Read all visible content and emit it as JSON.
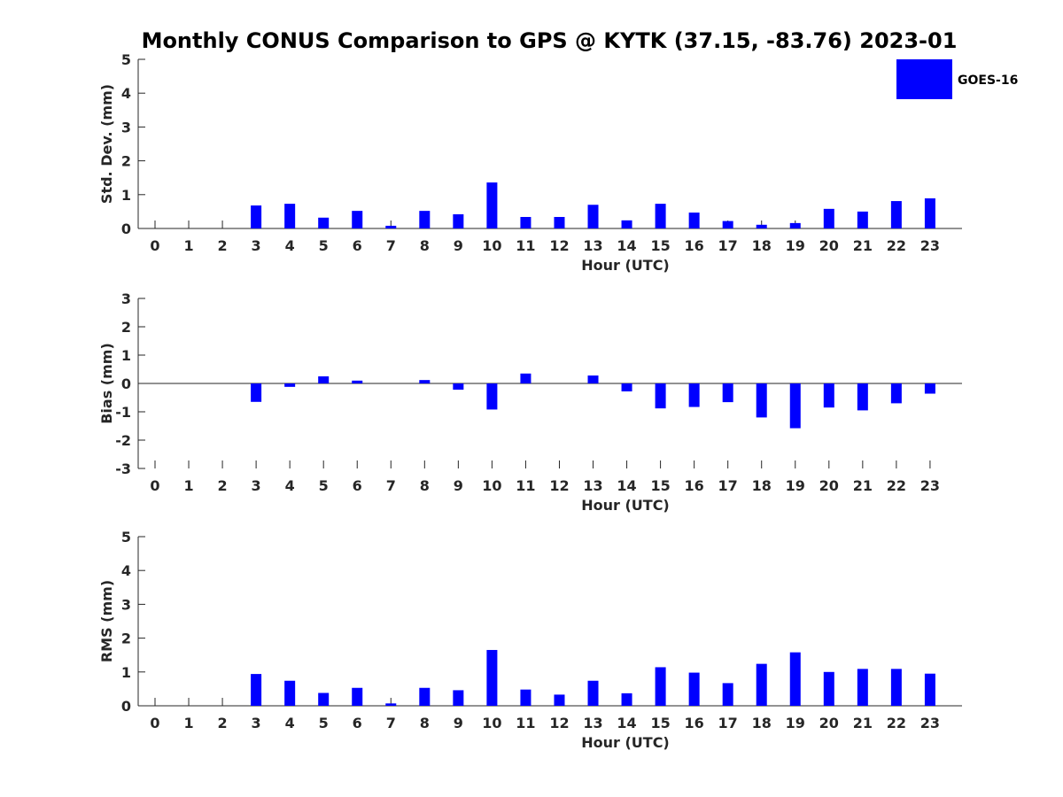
{
  "title": "Monthly CONUS Comparison to GPS @ KYTK (37.15, -83.76) 2023-01",
  "legend": {
    "label": "GOES-16",
    "color": "#0000ff"
  },
  "chart_data": [
    {
      "type": "bar",
      "ylabel": "Std. Dev. (mm)",
      "xlabel": "Hour (UTC)",
      "ylim": [
        0,
        5
      ],
      "yticks": [
        0,
        1,
        2,
        3,
        4,
        5
      ],
      "categories": [
        "0",
        "1",
        "2",
        "3",
        "4",
        "5",
        "6",
        "7",
        "8",
        "9",
        "10",
        "11",
        "12",
        "13",
        "14",
        "15",
        "16",
        "17",
        "18",
        "19",
        "20",
        "21",
        "22",
        "23"
      ],
      "series": [
        {
          "name": "GOES-16",
          "values": [
            0,
            0,
            0,
            0.68,
            0.73,
            0.32,
            0.52,
            0.08,
            0.52,
            0.42,
            1.36,
            0.34,
            0.34,
            0.7,
            0.24,
            0.73,
            0.47,
            0.22,
            0.11,
            0.16,
            0.58,
            0.5,
            0.81,
            0.89
          ]
        }
      ]
    },
    {
      "type": "bar",
      "ylabel": "Bias (mm)",
      "xlabel": "Hour (UTC)",
      "ylim": [
        -3,
        3
      ],
      "yticks": [
        -3,
        -2,
        -1,
        0,
        1,
        2,
        3
      ],
      "categories": [
        "0",
        "1",
        "2",
        "3",
        "4",
        "5",
        "6",
        "7",
        "8",
        "9",
        "10",
        "11",
        "12",
        "13",
        "14",
        "15",
        "16",
        "17",
        "18",
        "19",
        "20",
        "21",
        "22",
        "23"
      ],
      "series": [
        {
          "name": "GOES-16",
          "values": [
            0,
            0,
            0,
            -0.65,
            -0.12,
            0.25,
            0.1,
            0,
            0.12,
            -0.22,
            -0.92,
            0.35,
            0,
            0.28,
            -0.28,
            -0.88,
            -0.83,
            -0.66,
            -1.2,
            -1.58,
            -0.85,
            -0.95,
            -0.7,
            -0.36
          ]
        }
      ]
    },
    {
      "type": "bar",
      "ylabel": "RMS (mm)",
      "xlabel": "Hour (UTC)",
      "ylim": [
        0,
        5
      ],
      "yticks": [
        0,
        1,
        2,
        3,
        4,
        5
      ],
      "categories": [
        "0",
        "1",
        "2",
        "3",
        "4",
        "5",
        "6",
        "7",
        "8",
        "9",
        "10",
        "11",
        "12",
        "13",
        "14",
        "15",
        "16",
        "17",
        "18",
        "19",
        "20",
        "21",
        "22",
        "23"
      ],
      "series": [
        {
          "name": "GOES-16",
          "values": [
            0,
            0,
            0,
            0.94,
            0.74,
            0.38,
            0.53,
            0.07,
            0.53,
            0.46,
            1.65,
            0.48,
            0.33,
            0.74,
            0.37,
            1.14,
            0.98,
            0.67,
            1.24,
            1.58,
            1.0,
            1.09,
            1.09,
            0.95
          ]
        }
      ]
    }
  ]
}
